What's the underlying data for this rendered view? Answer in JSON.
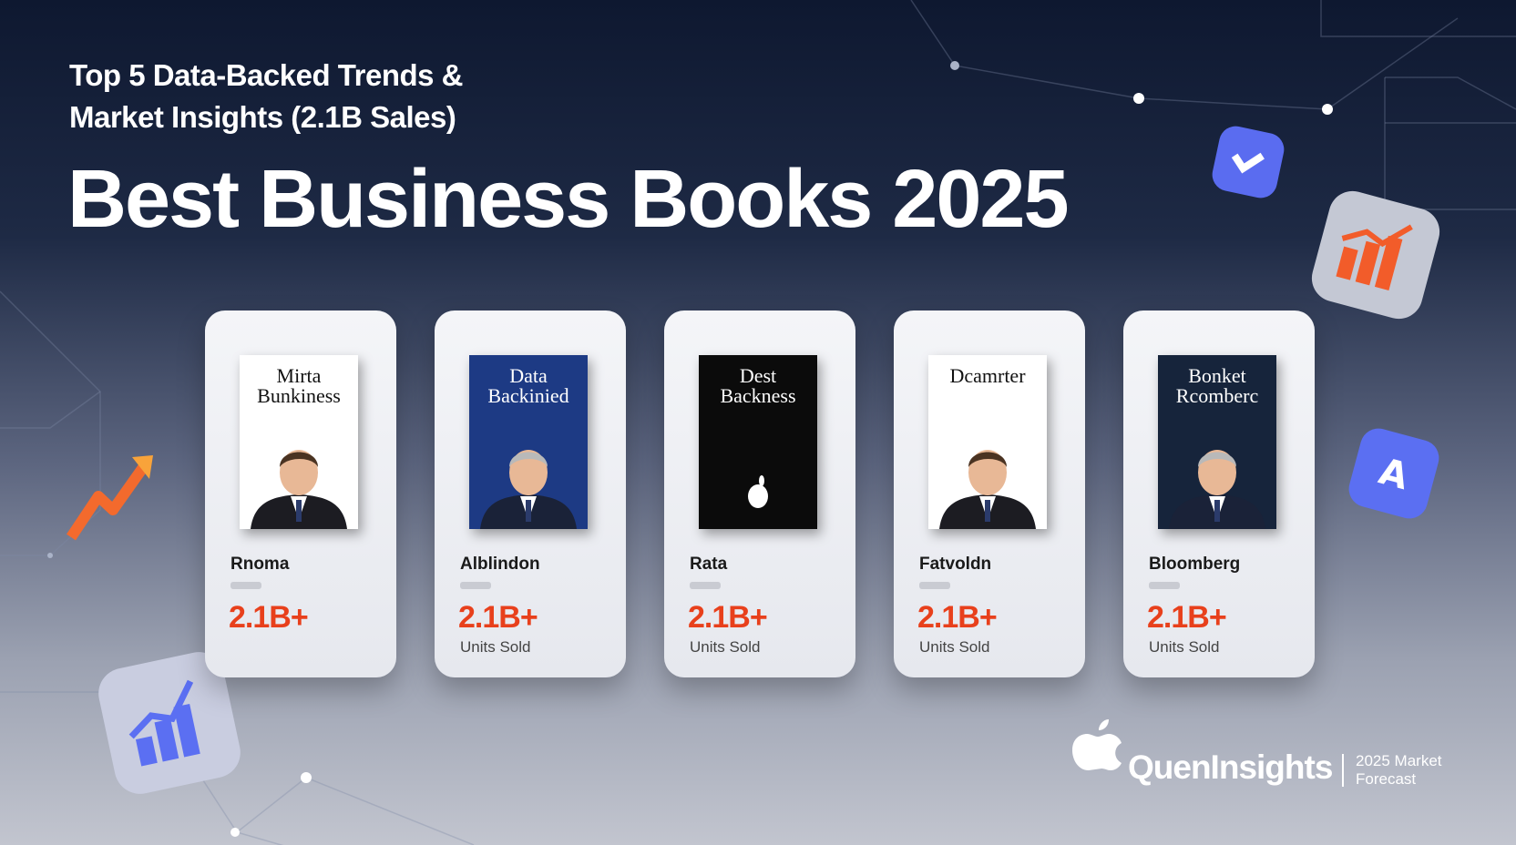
{
  "header": {
    "kicker_line1": "Top 5 Data-Backed Trends &",
    "kicker_line2": "Market Insights (2.1B Sales)",
    "title": "Best Business Books 2025"
  },
  "cards": [
    {
      "cover_title": "Mirta Bunkiness",
      "name": "Rnoma",
      "value": "2.1B+"
    },
    {
      "cover_title": "Data Backinied",
      "name": "Alblindon",
      "value": "2.1B+",
      "units": "Units Sold"
    },
    {
      "cover_title": "Dest Backness",
      "name": "Rata",
      "value": "2.1B+",
      "units": "Units Sold"
    },
    {
      "cover_title": "Dcamrter",
      "name": "Fatvoldn",
      "value": "2.1B+",
      "units": "Units Sold"
    },
    {
      "cover_title": "Bonket Rcomberc",
      "name": "Bloomberg",
      "value": "2.1B+",
      "units": "Units Sold"
    }
  ],
  "footer": {
    "brand": "QuenInsights",
    "tagline_line1": "2025 Market",
    "tagline_line2": "Forecast"
  }
}
